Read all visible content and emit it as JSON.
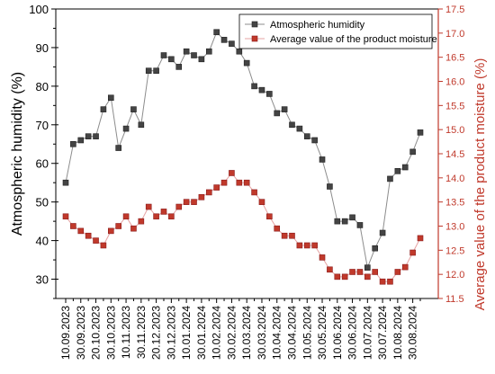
{
  "chart_data": {
    "type": "line",
    "title": "",
    "xlabel": "",
    "ylabel_left": "Atmospheric humidity (%)",
    "ylabel_right": "Average value of the product moisture (%)",
    "ylim_left": [
      25,
      100
    ],
    "ylim_right": [
      11.5,
      17.5
    ],
    "yticks_left": [
      "30",
      "40",
      "50",
      "60",
      "70",
      "80",
      "90",
      "100"
    ],
    "yticks_right": [
      "11.5",
      "12.0",
      "12.5",
      "13.0",
      "13.5",
      "14.0",
      "14.5",
      "15.0",
      "15.5",
      "16.0",
      "16.5",
      "17.0",
      "17.5"
    ],
    "x_tick_labels": [
      "10.09.2023",
      "30.09.2023",
      "20.10.2023",
      "30.10.2023",
      "10.11.2023",
      "30.11.2023",
      "20.12.2023",
      "30.12.2023",
      "10.01.2024",
      "30.01.2024",
      "10.02.2024",
      "30.02.2024",
      "10.03.2024",
      "30.03.2024",
      "10.04.2024",
      "30.04.2024",
      "10.05.2024",
      "30.05.2024",
      "10.06.2024",
      "30.06.2024",
      "10.07.2024",
      "30.07.2024",
      "10.08.2024",
      "30.08.2024"
    ],
    "legend_position": "top-right",
    "series": [
      {
        "name": "Atmospheric humidity",
        "axis": "left",
        "color": "#444444",
        "marker": "square",
        "values": [
          55,
          65,
          66,
          67,
          67,
          74,
          77,
          64,
          69,
          74,
          70,
          84,
          84,
          88,
          87,
          85,
          89,
          88,
          87,
          89,
          94,
          92,
          91,
          89,
          86,
          80,
          79,
          78,
          73,
          74,
          70,
          69,
          67,
          66,
          61,
          54,
          45,
          45,
          46,
          44,
          33,
          38,
          42,
          56,
          58,
          59,
          63,
          68
        ]
      },
      {
        "name": "Average value of the product moisture",
        "axis": "right",
        "color": "#c0392b",
        "marker": "square",
        "values": [
          13.2,
          13.0,
          12.9,
          12.8,
          12.7,
          12.6,
          12.9,
          13.0,
          13.2,
          12.95,
          13.1,
          13.4,
          13.2,
          13.3,
          13.2,
          13.4,
          13.5,
          13.5,
          13.6,
          13.7,
          13.8,
          13.9,
          14.1,
          13.9,
          13.9,
          13.7,
          13.5,
          13.2,
          12.95,
          12.8,
          12.8,
          12.6,
          12.6,
          12.6,
          12.35,
          12.1,
          11.95,
          11.95,
          12.05,
          12.05,
          11.95,
          12.05,
          11.85,
          11.85,
          12.05,
          12.15,
          12.45,
          12.75
        ]
      }
    ]
  }
}
